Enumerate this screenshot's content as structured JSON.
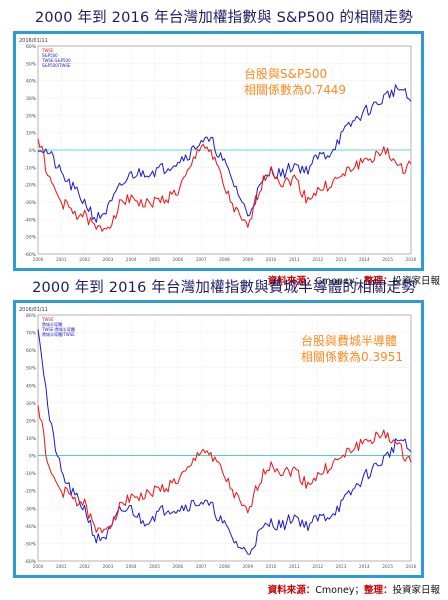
{
  "titles": {
    "chart1": "2000 年到 2016 年台灣加權指數與 S&P500 的相關走勢",
    "chart2": "2000 年到 2016 年台灣加權指數與費城半導體的相關走勢"
  },
  "source": {
    "label": "資料來源：",
    "value": "Cmoney",
    "sep": "；",
    "label2": "整理：",
    "value2": "投資家日報"
  },
  "colors": {
    "frame": "#2e9ad6",
    "taiex": "#ee1111",
    "sp500": "#1a1acc",
    "sox": "#1a1acc",
    "annotation": "#ff8a1e",
    "refline": "#33cccc",
    "chart_bg": "#ffffff"
  },
  "chart_data": [
    {
      "type": "line",
      "title": "2000 年到 2016 年台灣加權指數與 S&P500 的相關走勢",
      "annotation_lines": [
        "台股與S&P500",
        "相關係數為0.7449"
      ],
      "corner_text": "2016/01/11",
      "legend": [
        "TWSE",
        "S&P500",
        "TWSE-S&P500",
        "S&P500/TWSE"
      ],
      "y_ticks": [
        "60%",
        "50%",
        "40%",
        "30%",
        "20%",
        "10%",
        "0%",
        "-10%",
        "-20%",
        "-30%",
        "-40%",
        "-50%",
        "-60%"
      ],
      "ylim": [
        -60,
        60
      ],
      "x": [
        2000,
        2000.5,
        2001,
        2001.5,
        2002,
        2002.5,
        2003,
        2003.5,
        2004,
        2004.5,
        2005,
        2005.5,
        2006,
        2006.5,
        2007,
        2007.5,
        2008,
        2008.5,
        2009,
        2009.5,
        2010,
        2010.5,
        2011,
        2011.5,
        2012,
        2012.5,
        2013,
        2013.5,
        2014,
        2014.5,
        2015,
        2015.5,
        2016
      ],
      "xlim": [
        2000,
        2016
      ],
      "series": [
        {
          "name": "S&P500",
          "values": [
            2,
            -2,
            -14,
            -22,
            -30,
            -40,
            -34,
            -22,
            -14,
            -13,
            -12,
            -10,
            -6,
            -2,
            6,
            4,
            -8,
            -22,
            -38,
            -22,
            -12,
            -14,
            -8,
            -12,
            -4,
            -2,
            8,
            16,
            22,
            26,
            32,
            36,
            28
          ]
        },
        {
          "name": "TWSE",
          "values": [
            8,
            -18,
            -30,
            -36,
            -38,
            -46,
            -44,
            -32,
            -26,
            -32,
            -30,
            -28,
            -24,
            -12,
            4,
            -2,
            -22,
            -36,
            -46,
            -22,
            -10,
            -20,
            -16,
            -28,
            -24,
            -20,
            -16,
            -10,
            -6,
            -4,
            0,
            -12,
            -8
          ]
        }
      ]
    },
    {
      "type": "line",
      "title": "2000 年到 2016 年台灣加權指數與費城半導體的相關走勢",
      "annotation_lines": [
        "台股與費城半導體",
        "相關係數為0.3951"
      ],
      "corner_text": "2016/01/11",
      "legend": [
        "TWSE",
        "費城半導體",
        "TWSE-費城半導體",
        "費城半導體/TWSE"
      ],
      "y_ticks": [
        "80%",
        "70%",
        "60%",
        "50%",
        "40%",
        "30%",
        "20%",
        "10%",
        "0%",
        "-10%",
        "-20%",
        "-30%",
        "-40%",
        "-50%",
        "-60%"
      ],
      "ylim": [
        -60,
        80
      ],
      "x": [
        2000,
        2000.5,
        2001,
        2001.5,
        2002,
        2002.5,
        2003,
        2003.5,
        2004,
        2004.5,
        2005,
        2005.5,
        2006,
        2006.5,
        2007,
        2007.5,
        2008,
        2008.5,
        2009,
        2009.5,
        2010,
        2010.5,
        2011,
        2011.5,
        2012,
        2012.5,
        2013,
        2013.5,
        2014,
        2014.5,
        2015,
        2015.5,
        2016
      ],
      "xlim": [
        2000,
        2016
      ],
      "series": [
        {
          "name": "費城半導體",
          "values": [
            75,
            20,
            -10,
            -22,
            -30,
            -48,
            -45,
            -32,
            -30,
            -38,
            -34,
            -30,
            -30,
            -28,
            -26,
            -30,
            -40,
            -50,
            -56,
            -44,
            -38,
            -40,
            -34,
            -40,
            -36,
            -34,
            -28,
            -20,
            -12,
            -6,
            0,
            10,
            2
          ]
        },
        {
          "name": "TWSE",
          "values": [
            30,
            -10,
            -20,
            -24,
            -28,
            -44,
            -40,
            -30,
            -22,
            -24,
            -20,
            -18,
            -14,
            -8,
            4,
            0,
            -12,
            -24,
            -34,
            -14,
            -4,
            -10,
            -8,
            -16,
            -12,
            -6,
            -2,
            4,
            8,
            10,
            12,
            4,
            -4
          ]
        }
      ]
    }
  ]
}
